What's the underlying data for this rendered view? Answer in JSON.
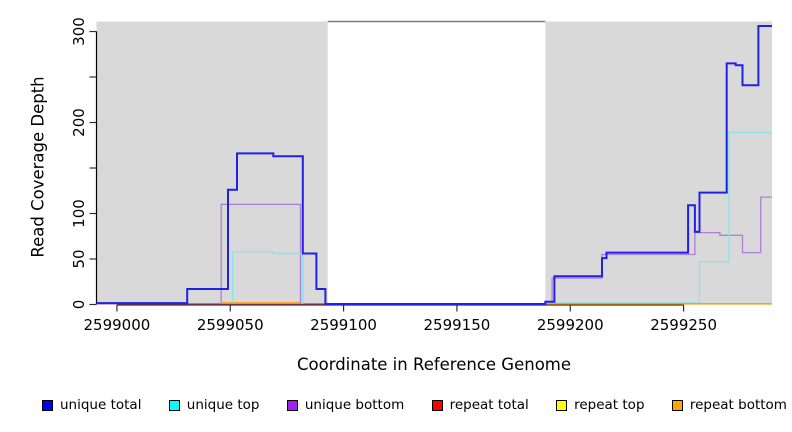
{
  "chart_data": {
    "type": "line",
    "title": "",
    "xlabel": "Coordinate in Reference Genome",
    "ylabel": "Read Coverage Depth",
    "xlim": [
      2598991,
      2599289
    ],
    "ylim": [
      0,
      311
    ],
    "grid": false,
    "legend_position": "bottom",
    "x_ticks": [
      {
        "v": 2599000,
        "label": "2599000"
      },
      {
        "v": 2599050,
        "label": "2599050"
      },
      {
        "v": 2599100,
        "label": "2599100"
      },
      {
        "v": 2599150,
        "label": "2599150"
      },
      {
        "v": 2599200,
        "label": "2599200"
      },
      {
        "v": 2599250,
        "label": "2599250"
      }
    ],
    "y_ticks": [
      {
        "v": 0,
        "label": "0"
      },
      {
        "v": 50,
        "label": "50"
      },
      {
        "v": 100,
        "label": "100"
      },
      {
        "v": 150,
        "label": ""
      },
      {
        "v": 200,
        "label": "200"
      },
      {
        "v": 250,
        "label": ""
      },
      {
        "v": 300,
        "label": "300"
      }
    ],
    "shaded_regions": [
      {
        "x0": 2598991,
        "x1": 2599093
      },
      {
        "x0": 2599189,
        "x1": 2599289
      }
    ],
    "region_color": "#d9d9d9",
    "gap_top_border": {
      "x0": 2599093,
      "x1": 2599189,
      "color": "#7d7d7d"
    },
    "axis_color": "#000000",
    "legend": [
      {
        "label": "unique total",
        "color": "#0000ff"
      },
      {
        "label": "unique top",
        "color": "#00ffff"
      },
      {
        "label": "unique bottom",
        "color": "#a020f0"
      },
      {
        "label": "repeat total",
        "color": "#ff0000"
      },
      {
        "label": "repeat top",
        "color": "#ffff00"
      },
      {
        "label": "repeat bottom",
        "color": "#ffa500"
      }
    ],
    "series": [
      {
        "name": "repeat top",
        "stroke": "#ffee00",
        "width": 1.2,
        "segments": [
          [
            [
              2598991,
              0.8
            ],
            [
              2599289,
              0.8
            ]
          ]
        ]
      },
      {
        "name": "unique bottom",
        "stroke": "#ad7fd9",
        "width": 1.3,
        "segments": [
          [
            [
              2598991,
              1
            ],
            [
              2599046,
              1
            ],
            [
              2599046,
              110
            ],
            [
              2599081,
              110
            ],
            [
              2599081,
              1
            ],
            [
              2599092,
              1
            ]
          ],
          [
            [
              2599192,
              1
            ],
            [
              2599192,
              29
            ],
            [
              2599214,
              29
            ],
            [
              2599214,
              55
            ],
            [
              2599255,
              55
            ],
            [
              2599255,
              79
            ],
            [
              2599266,
              79
            ],
            [
              2599266,
              76
            ],
            [
              2599276,
              76
            ],
            [
              2599276,
              57
            ],
            [
              2599284,
              57
            ],
            [
              2599284,
              118
            ],
            [
              2599289,
              118
            ]
          ]
        ]
      },
      {
        "name": "repeat total",
        "stroke": "#d4688e",
        "width": 1.3,
        "segments": [
          [
            [
              2598991,
              0.8
            ],
            [
              2599289,
              0.8
            ]
          ]
        ]
      },
      {
        "name": "unique top",
        "stroke": "#8ae4e8",
        "width": 1.4,
        "segments": [
          [
            [
              2599051,
              0.5
            ],
            [
              2599051,
              58
            ],
            [
              2599069,
              58
            ],
            [
              2599069,
              56
            ],
            [
              2599082,
              56
            ],
            [
              2599082,
              0.5
            ]
          ],
          [
            [
              2599192,
              1.5
            ],
            [
              2599257,
              1.5
            ],
            [
              2599257,
              47
            ],
            [
              2599270,
              47
            ],
            [
              2599270,
              189
            ],
            [
              2599289,
              189
            ]
          ]
        ]
      },
      {
        "name": "repeat bottom",
        "stroke": "#ff9e1b",
        "width": 1.6,
        "segments": [
          [
            [
              2599046,
              1.8
            ],
            [
              2599081,
              1.8
            ]
          ],
          [
            [
              2599189,
              0.8
            ],
            [
              2599289,
              0.8
            ]
          ]
        ]
      },
      {
        "name": "unique total",
        "stroke": "#2121e6",
        "width": 2,
        "segments": [
          [
            [
              2598991,
              1.5
            ],
            [
              2599031,
              1.5
            ],
            [
              2599031,
              17
            ],
            [
              2599049,
              17
            ],
            [
              2599049,
              126
            ],
            [
              2599053,
              126
            ],
            [
              2599053,
              166
            ],
            [
              2599069,
              166
            ],
            [
              2599069,
              163
            ],
            [
              2599082,
              163
            ],
            [
              2599082,
              56
            ],
            [
              2599088,
              56
            ],
            [
              2599088,
              17
            ],
            [
              2599092,
              17
            ],
            [
              2599092,
              0.5
            ],
            [
              2599189,
              0.5
            ],
            [
              2599189,
              3
            ],
            [
              2599193,
              3
            ],
            [
              2599193,
              31
            ],
            [
              2599214,
              31
            ],
            [
              2599214,
              51
            ],
            [
              2599216,
              51
            ],
            [
              2599216,
              57
            ],
            [
              2599252,
              57
            ],
            [
              2599252,
              109
            ],
            [
              2599255,
              109
            ],
            [
              2599255,
              80
            ],
            [
              2599257,
              80
            ],
            [
              2599257,
              123
            ],
            [
              2599269,
              123
            ],
            [
              2599269,
              265
            ],
            [
              2599273,
              265
            ],
            [
              2599273,
              263
            ],
            [
              2599276,
              263
            ],
            [
              2599276,
              241
            ],
            [
              2599283,
              241
            ],
            [
              2599283,
              306
            ],
            [
              2599289,
              306
            ]
          ]
        ]
      }
    ]
  }
}
